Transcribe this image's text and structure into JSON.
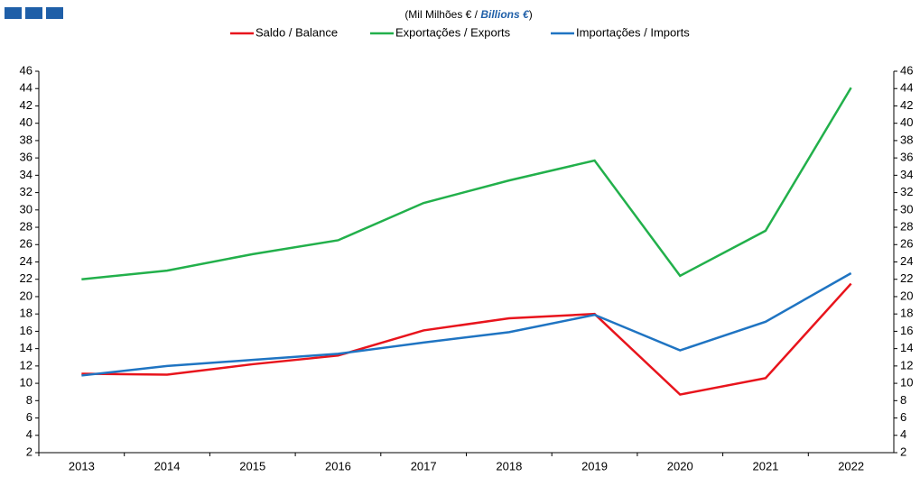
{
  "chart_data": {
    "type": "line",
    "subtitle": [
      "(Mil Milhões € / ",
      "Billions €",
      ")"
    ],
    "categories": [
      "2013",
      "2014",
      "2015",
      "2016",
      "2017",
      "2018",
      "2019",
      "2020",
      "2021",
      "2022"
    ],
    "series": [
      {
        "name": "Saldo / Balance",
        "color": "#e8141c",
        "values": [
          11.1,
          11.0,
          12.2,
          13.2,
          16.1,
          17.5,
          18.0,
          8.7,
          10.6,
          21.5
        ]
      },
      {
        "name": "Exportações / Exports",
        "color": "#22b04b",
        "values": [
          22.0,
          23.0,
          24.9,
          26.5,
          30.8,
          33.4,
          35.7,
          22.4,
          27.6,
          44.1
        ]
      },
      {
        "name": "Importações / Imports",
        "color": "#1f74c2",
        "values": [
          10.9,
          12.0,
          12.7,
          13.4,
          14.7,
          15.9,
          17.9,
          13.8,
          17.1,
          22.7
        ]
      }
    ],
    "ylim": [
      2,
      46
    ],
    "yticks": [
      2,
      4,
      6,
      8,
      10,
      12,
      14,
      16,
      18,
      20,
      22,
      24,
      26,
      28,
      30,
      32,
      34,
      36,
      38,
      40,
      42,
      44,
      46
    ],
    "y2lim": [
      2,
      46
    ],
    "y2ticks": [
      2,
      4,
      6,
      8,
      10,
      12,
      14,
      16,
      18,
      20,
      22,
      24,
      26,
      28,
      30,
      32,
      34,
      36,
      38,
      40,
      42,
      44,
      46
    ],
    "legend": "top"
  }
}
